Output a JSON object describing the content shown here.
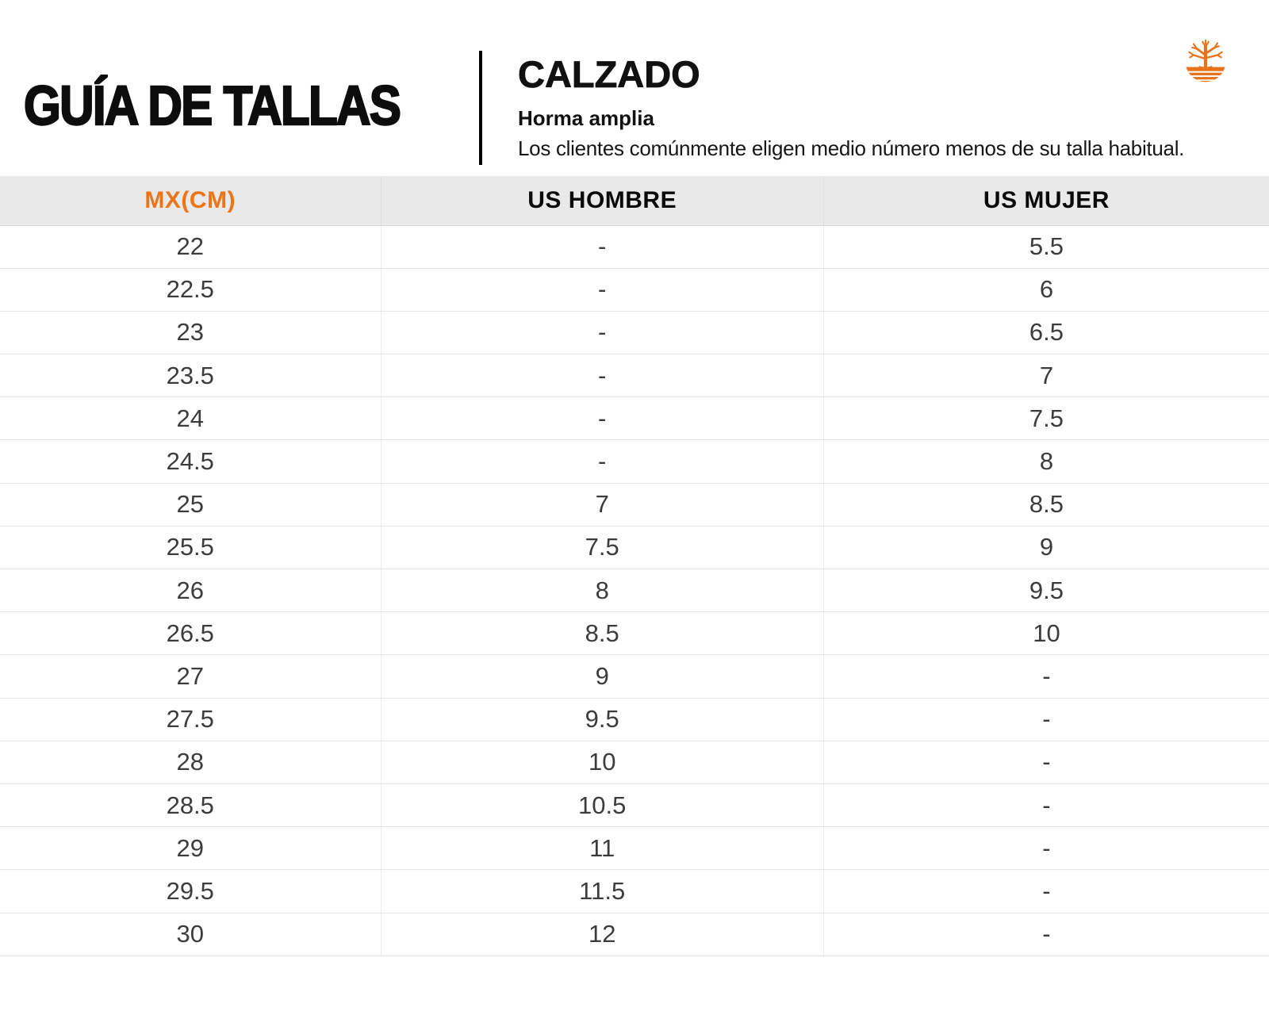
{
  "header": {
    "title": "GUÍA DE TALLAS",
    "category": "CALZADO",
    "fit": "Horma amplia",
    "note": "Los clientes comúnmente eligen medio número menos de su talla habitual.",
    "brand_logo": "timberland-tree-logo"
  },
  "colors": {
    "accent_orange": "#EC7517",
    "logo_orange": "#E8731D",
    "header_row_bg": "#E9E9E9",
    "cell_text": "#3C3C3C",
    "grid_line": "#E5E5E5"
  },
  "table": {
    "columns": [
      "MX(CM)",
      "US HOMBRE",
      "US MUJER"
    ],
    "rows": [
      [
        "22",
        "-",
        "5.5"
      ],
      [
        "22.5",
        "-",
        "6"
      ],
      [
        "23",
        "-",
        "6.5"
      ],
      [
        "23.5",
        "-",
        "7"
      ],
      [
        "24",
        "-",
        "7.5"
      ],
      [
        "24.5",
        "-",
        "8"
      ],
      [
        "25",
        "7",
        "8.5"
      ],
      [
        "25.5",
        "7.5",
        "9"
      ],
      [
        "26",
        "8",
        "9.5"
      ],
      [
        "26.5",
        "8.5",
        "10"
      ],
      [
        "27",
        "9",
        "-"
      ],
      [
        "27.5",
        "9.5",
        "-"
      ],
      [
        "28",
        "10",
        "-"
      ],
      [
        "28.5",
        "10.5",
        "-"
      ],
      [
        "29",
        "11",
        "-"
      ],
      [
        "29.5",
        "11.5",
        "-"
      ],
      [
        "30",
        "12",
        "-"
      ]
    ]
  }
}
